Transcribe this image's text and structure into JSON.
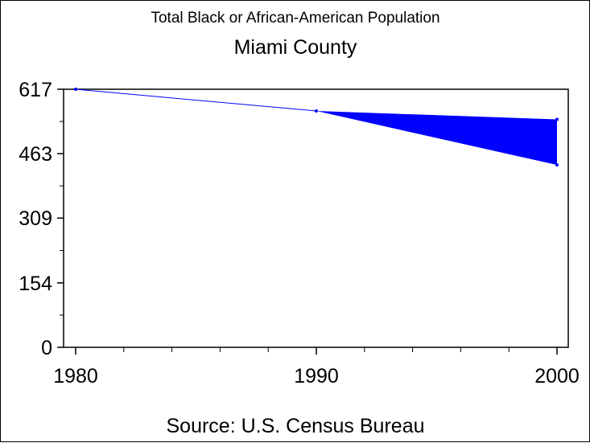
{
  "chart_data": {
    "type": "line",
    "title": "Total Black or African-American Population",
    "subtitle": "Miami County",
    "footnote": "Source: U.S. Census Bureau",
    "x": [
      1980,
      1990
    ],
    "values": [
      617,
      565
    ],
    "projection_range": {
      "x": [
        1990,
        2000
      ],
      "upper": [
        565,
        545
      ],
      "lower": [
        565,
        436
      ]
    },
    "xticks": [
      "1980",
      "1990",
      "2000"
    ],
    "yticks": [
      "0",
      "154",
      "309",
      "463",
      "617"
    ],
    "ytick_values": [
      0,
      154,
      309,
      463,
      617
    ],
    "xlim": [
      1979.5,
      2000.5
    ],
    "ylim": [
      0,
      617
    ],
    "color": "#0000ff"
  }
}
